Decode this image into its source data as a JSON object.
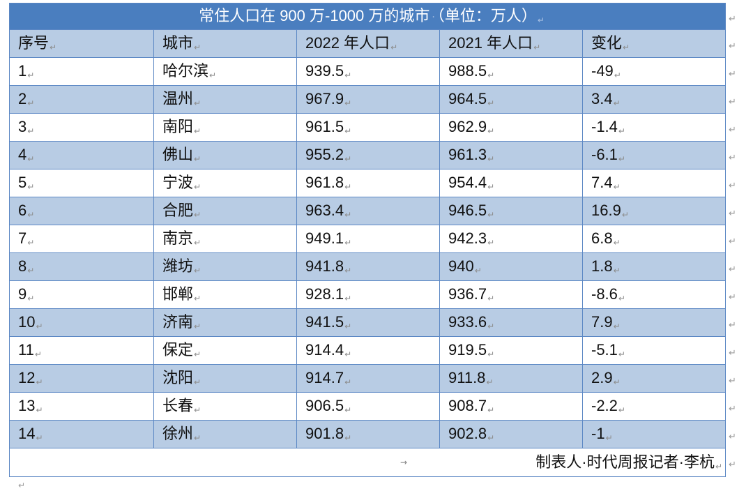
{
  "document": {
    "table": {
      "title": {
        "text": "常住人口在 900 万-1000 万的城市",
        "unit": "（单位：万人）"
      },
      "columns": [
        "序号",
        "城市",
        "2022 年人口",
        "2021 年人口",
        "变化"
      ],
      "rows": [
        [
          "1",
          "哈尔滨",
          "939.5",
          "988.5",
          "-49"
        ],
        [
          "2",
          "温州",
          "967.9",
          "964.5",
          "3.4"
        ],
        [
          "3",
          "南阳",
          "961.5",
          "962.9",
          "-1.4"
        ],
        [
          "4",
          "佛山",
          "955.2",
          "961.3",
          "-6.1"
        ],
        [
          "5",
          "宁波",
          "961.8",
          "954.4",
          "7.4"
        ],
        [
          "6",
          "合肥",
          "963.4",
          "946.5",
          "16.9"
        ],
        [
          "7",
          "南京",
          "949.1",
          "942.3",
          "6.8"
        ],
        [
          "8",
          "潍坊",
          "941.8",
          "940",
          "1.8"
        ],
        [
          "9",
          "邯郸",
          "928.1",
          "936.7",
          "-8.6"
        ],
        [
          "10",
          "济南",
          "941.5",
          "933.6",
          "7.9"
        ],
        [
          "11",
          "保定",
          "914.4",
          "919.5",
          "-5.1"
        ],
        [
          "12",
          "沈阳",
          "914.7",
          "911.8",
          "2.9"
        ],
        [
          "13",
          "长春",
          "906.5",
          "908.7",
          "-2.2"
        ],
        [
          "14",
          "徐州",
          "901.8",
          "902.8",
          "-1"
        ]
      ],
      "footer": "制表人·时代周报记者·李杭"
    },
    "marks": {
      "paragraph": "↵",
      "space": "·",
      "tab": "→"
    }
  },
  "colors": {
    "title_bg": "#4a7ebf",
    "title_text": "#ffffff",
    "band_bg": "#b8cce4",
    "border": "#5b87c4"
  }
}
